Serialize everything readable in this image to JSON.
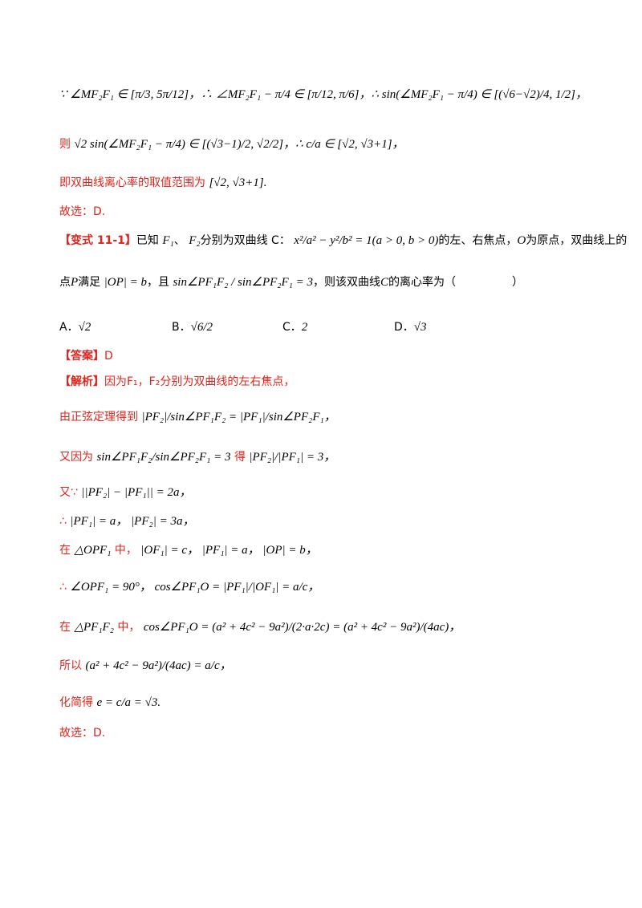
{
  "lines": {
    "l1": "∵ ∠MF₂F₁ ∈ [π/3, 5π/12]，∴ ∠MF₂F₁ − π/4 ∈ [π/12, π/6]，∴ sin(∠MF₂F₁ − π/4) ∈ [(√6−√2)/4, 1/2]，",
    "l2_prefix": "则",
    "l2_math": "√2 sin(∠MF₂F₁ − π/4) ∈ [(√3−1)/2, √2/2]，∴ c/a ∈ [√2, √3+1]，",
    "l3_text": "即双曲线离心率的取值范围为",
    "l3_math": "[√2, √3+1].",
    "l4": "故选：D."
  },
  "problem": {
    "tag_open": "【",
    "tag_text": "变式 11-1",
    "tag_close": "】",
    "line1_a": "已知",
    "line1_f1": "F₁",
    "line1_sep": "、",
    "line1_f2": "F₂",
    "line1_b": "分别为双曲线 C：",
    "line1_eq": "x²/a² − y²/b² = 1(a > 0, b > 0)",
    "line1_c": "的左、右焦点，",
    "line1_o": "O",
    "line1_d": "为原点，双曲线上的",
    "line2_a": "点",
    "line2_p": "P",
    "line2_b": "满足",
    "line2_eq1": "|OP| = b",
    "line2_c": "，且",
    "line2_eq2": "sin∠PF₁F₂ / sin∠PF₂F₁ = 3",
    "line2_d": "，则该双曲线",
    "line2_cc": "C",
    "line2_e": "的离心率为（",
    "line2_f": "）",
    "options": [
      {
        "label": "A．",
        "value": "√2"
      },
      {
        "label": "B．",
        "value": "√6/2"
      },
      {
        "label": "C．",
        "value": "2"
      },
      {
        "label": "D．",
        "value": "√3"
      }
    ]
  },
  "answer": {
    "open": "【",
    "text": "答案",
    "close": "】",
    "value": "D"
  },
  "analysis": {
    "open": "【",
    "text": "解析",
    "close": "】",
    "s1": "因为F₁，F₂分别为双曲线的左右焦点，",
    "s2_text": "由正弦定理得到",
    "s2_math": "|PF₂|/sin∠PF₁F₂ = |PF₁|/sin∠PF₂F₁，",
    "s3_text": "又因为",
    "s3_math1": "sin∠PF₁F₂/sin∠PF₂F₁ = 3",
    "s3_mid": "得",
    "s3_math2": "|PF₂|/|PF₁| = 3，",
    "s4_text": "又∵",
    "s4_math": "||PF₂| − |PF₁|| = 2a，",
    "s5_text": "∴",
    "s5_math": "|PF₁| = a， |PF₂| = 3a，",
    "s6_text": "在",
    "s6_tri": "△OPF₁",
    "s6_mid": "中，",
    "s6_math": "|OF₁| = c， |PF₁| = a， |OP| = b，",
    "s7_text": "∴",
    "s7_math": "∠OPF₁ = 90°， cos∠PF₁O = |PF₁|/|OF₁| = a/c，",
    "s8_text": "在",
    "s8_tri": "△PF₁F₂",
    "s8_mid": "中，",
    "s8_math": "cos∠PF₁O = (a² + 4c² − 9a²)/(2·a·2c) = (a² + 4c² − 9a²)/(4ac)，",
    "s9_text": "所以",
    "s9_math": "(a² + 4c² − 9a²)/(4ac) = a/c，",
    "s10_text": "化简得",
    "s10_math": "e = c/a = √3.",
    "s11": "故选：D."
  }
}
